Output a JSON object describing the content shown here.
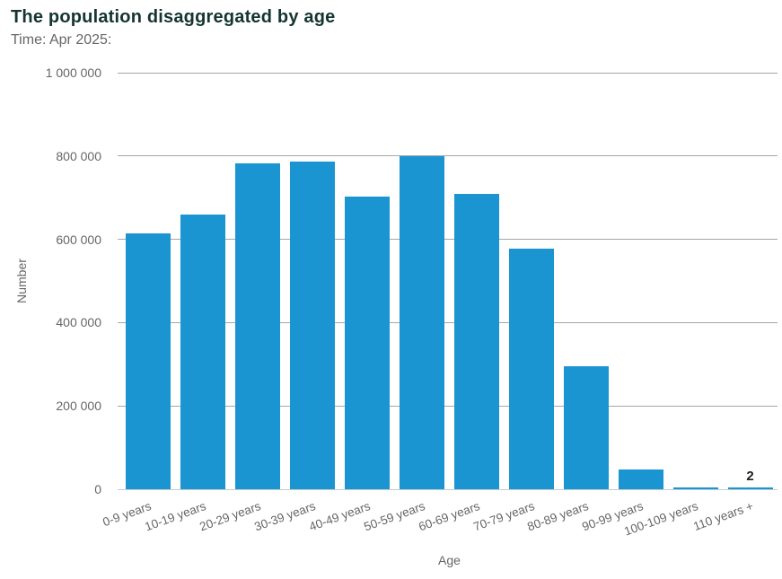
{
  "header": {
    "title": "The population disaggregated by age",
    "subtitle": "Time: Apr 2025:"
  },
  "chart_data": {
    "type": "bar",
    "title": "The population disaggregated by age",
    "subtitle": "Time: Apr 2025:",
    "xlabel": "Age",
    "ylabel": "Number",
    "categories": [
      "0-9 years",
      "10-19 years",
      "20-29 years",
      "30-39 years",
      "40-49 years",
      "50-59 years",
      "60-69 years",
      "70-79 years",
      "80-89 years",
      "90-99 years",
      "100-109 years",
      "110 years +"
    ],
    "values": [
      615000,
      660000,
      782000,
      786000,
      703000,
      799000,
      708000,
      577000,
      296000,
      48000,
      4000,
      2
    ],
    "point_labels": [
      "",
      "",
      "",
      "",
      "",
      "",
      "",
      "",
      "",
      "",
      "",
      "2"
    ],
    "ylim": [
      0,
      1000000
    ],
    "yticks": [
      {
        "value": 0,
        "label": "0"
      },
      {
        "value": 200000,
        "label": "200 000"
      },
      {
        "value": 400000,
        "label": "400 000"
      },
      {
        "value": 600000,
        "label": "600 000"
      },
      {
        "value": 800000,
        "label": "800 000"
      },
      {
        "value": 1000000,
        "label": "1 000 000"
      }
    ],
    "grid": "horizontal",
    "legend": "none"
  },
  "colors": {
    "bar": "#1b95d2",
    "gridline": "#a6a6a6",
    "zero_line": "#c7ccd1",
    "title": "#143530",
    "text_muted": "#666666",
    "point_label": "#1d1d1d"
  }
}
